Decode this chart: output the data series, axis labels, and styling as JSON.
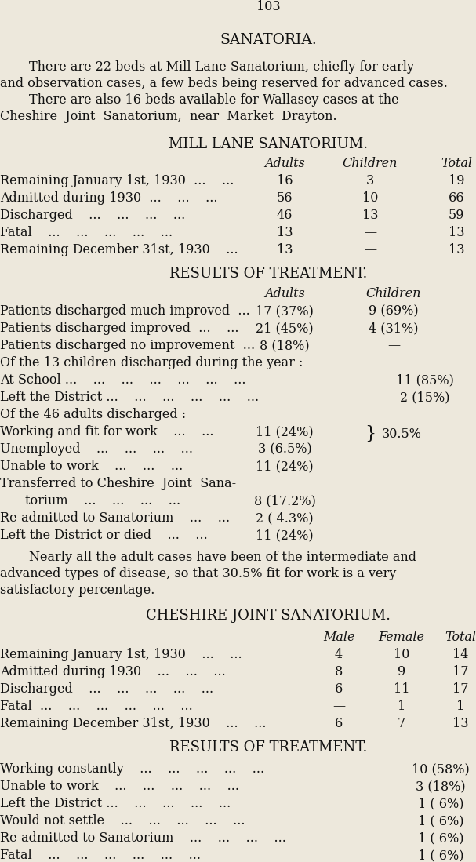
{
  "bg_color": "#ede8dc",
  "text_color": "#111111",
  "page_number": "103",
  "title": "SANATORIA.",
  "mill_lane_title": "MILL LANE SANATORIUM.",
  "mill_results_title": "RESULTS OF TREATMENT.",
  "cheshire_title": "CHESHIRE JOINT SANATORIUM.",
  "cheshire_results_title": "RESULTS OF TREATMENT.",
  "adults_para_line1": "Nearly all the adult cases have been of the intermediate and",
  "adults_para_line2": "advanced types of disease, so that 30.5% fit for work is a very",
  "adults_para_line3": "satisfactory percentage."
}
